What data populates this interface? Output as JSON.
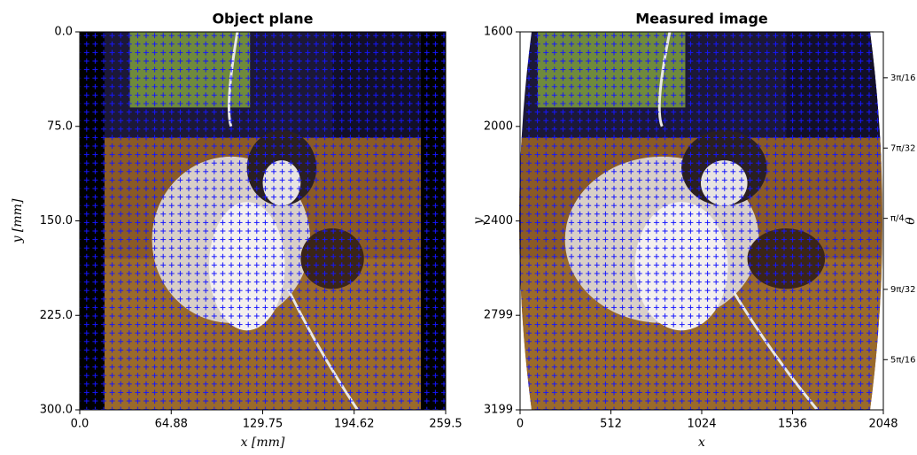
{
  "chart_data": [
    {
      "type": "image",
      "title": "Object plane",
      "xlabel": "x [mm]",
      "ylabel": "y [mm]",
      "xlim": [
        0,
        259.5
      ],
      "ylim": [
        0,
        300
      ],
      "y_inverted": true,
      "xticks": [
        {
          "value": 0,
          "label": "0.0"
        },
        64.88,
        129.75,
        194.62,
        259.5
      ],
      "yticks": [
        {
          "value": 0,
          "label": "0.0"
        },
        {
          "value": 75,
          "label": "75.0"
        },
        {
          "value": 150,
          "label": "150.0"
        },
        {
          "value": 225,
          "label": "225.0"
        },
        {
          "value": 300,
          "label": "300.0"
        }
      ],
      "marker_color": "#0000ff"
    },
    {
      "type": "image",
      "title": "Measured image",
      "xlabel": "x",
      "ylabel": "y",
      "y2label": "θ",
      "xlim": [
        0,
        2048
      ],
      "ylim": [
        1600,
        3199
      ],
      "y_inverted": true,
      "xticks": [
        0,
        512,
        1024,
        1536,
        2048
      ],
      "yticks": [
        1600,
        2000,
        2400,
        2799,
        3199
      ],
      "y2lim": [
        0.525,
        1.052
      ],
      "y2ticks": [
        {
          "value": 0.589,
          "label": "3π/16"
        },
        {
          "value": 0.687,
          "label": "7π/32"
        },
        {
          "value": 0.785,
          "label": "π/4"
        },
        {
          "value": 0.884,
          "label": "9π/32"
        },
        {
          "value": 0.982,
          "label": "5π/16"
        }
      ],
      "marker_color": "#0000ff"
    }
  ]
}
